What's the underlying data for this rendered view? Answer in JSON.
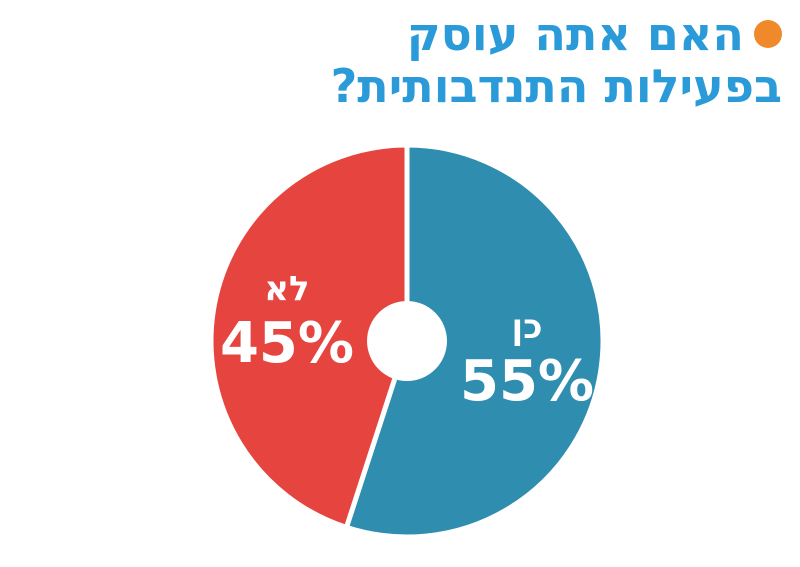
{
  "title": {
    "line1": "האם אתה עוסק",
    "line2": "בפעילות התנדבותית?",
    "dot_color": "#f0892a",
    "color": "#2a9bd8"
  },
  "chart_data": {
    "type": "pie",
    "title": "האם אתה עוסק בפעילות התנדבותית?",
    "categories": [
      "כן",
      "לא"
    ],
    "values": [
      55,
      45
    ],
    "value_labels": [
      "55%",
      "45%"
    ],
    "colors": [
      "#2f8db0",
      "#e6443f"
    ],
    "donut_hole": true,
    "legend": "none"
  }
}
